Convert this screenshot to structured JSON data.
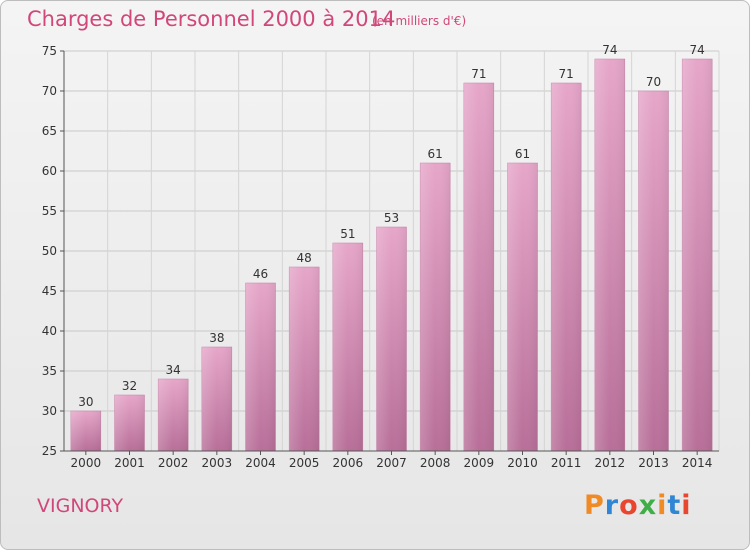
{
  "title": "Charges de Personnel 2000 à 2014",
  "subtitle": "(en milliers d'€)",
  "location": "VIGNORY",
  "logo": {
    "text": "Proxiti",
    "colors": [
      "#f08a24",
      "#2e86d4",
      "#e8462e",
      "#3fae49",
      "#f08a24",
      "#2e86d4",
      "#e8462e"
    ]
  },
  "colors": {
    "bar": "#d98fb4",
    "accent": "#d1477a"
  },
  "chart_data": {
    "type": "bar",
    "title": "Charges de Personnel 2000 à 2014",
    "subtitle": "(en milliers d'€)",
    "xlabel": "",
    "ylabel": "",
    "categories": [
      "2000",
      "2001",
      "2002",
      "2003",
      "2004",
      "2005",
      "2006",
      "2007",
      "2008",
      "2009",
      "2010",
      "2011",
      "2012",
      "2013",
      "2014"
    ],
    "values": [
      30,
      32,
      34,
      38,
      46,
      48,
      51,
      53,
      61,
      71,
      61,
      71,
      74,
      70,
      74
    ],
    "ylim": [
      25,
      75
    ],
    "yticks": [
      25,
      30,
      35,
      40,
      45,
      50,
      55,
      60,
      65,
      70,
      75
    ],
    "grid": true,
    "legend": "none"
  }
}
